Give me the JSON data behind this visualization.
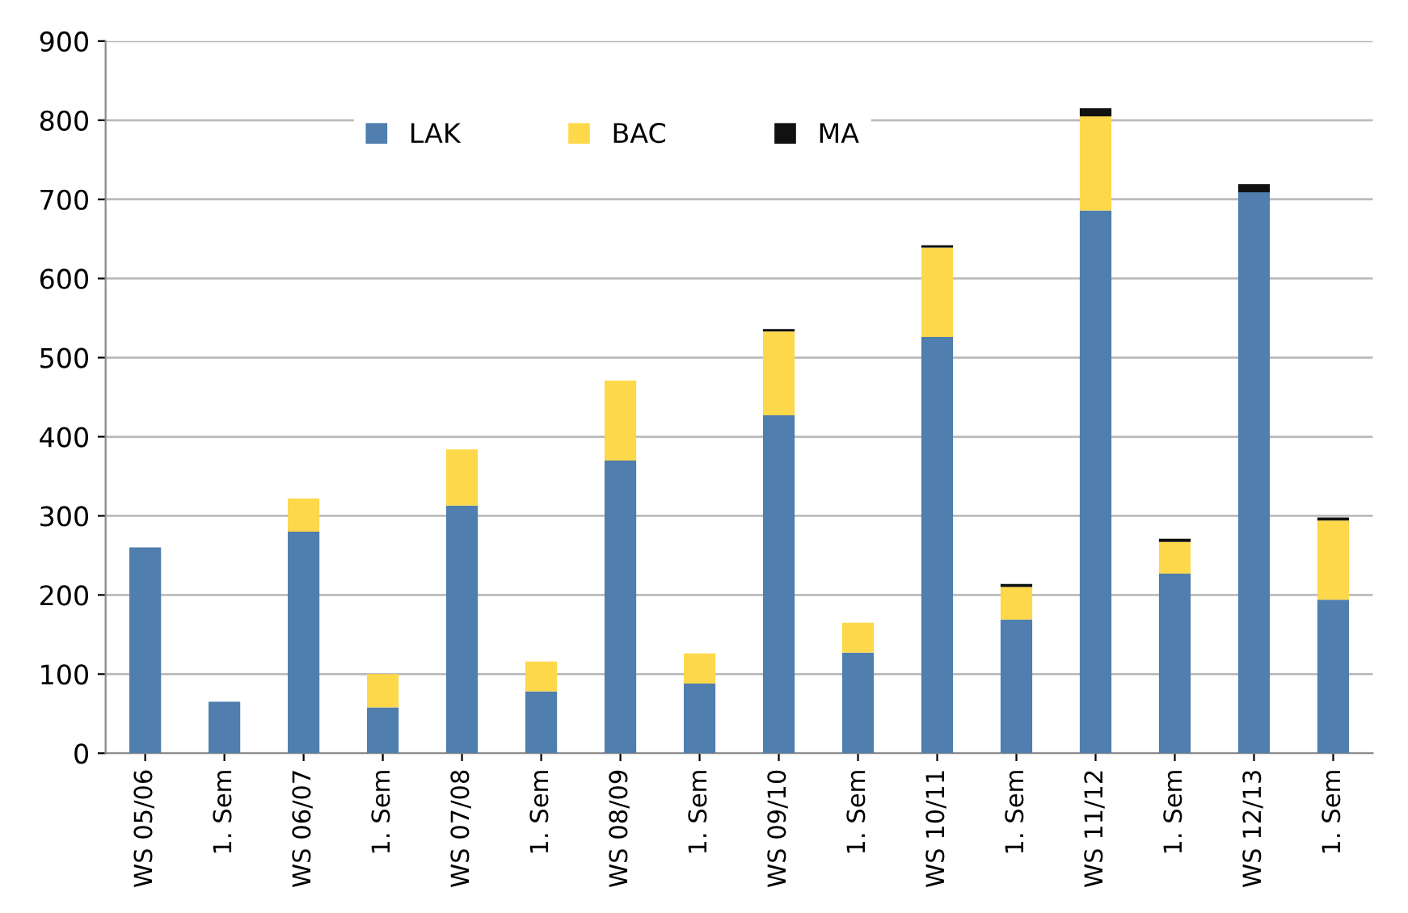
{
  "chart_data": {
    "type": "bar",
    "stacked": true,
    "categories": [
      "WS 05/06",
      "1. Sem",
      "WS 06/07",
      "1. Sem",
      "WS 07/08",
      "1. Sem",
      "WS 08/09",
      "1. Sem",
      "WS 09/10",
      "1. Sem",
      "WS 10/11",
      "1. Sem",
      "WS 11/12",
      "1. Sem",
      "WS 12/13",
      "1. Sem"
    ],
    "series": [
      {
        "name": "LAK",
        "color": "#4f7eaf",
        "values": [
          260,
          65,
          280,
          58,
          313,
          78,
          370,
          88,
          427,
          127,
          526,
          169,
          686,
          227,
          709,
          194
        ]
      },
      {
        "name": "BAC",
        "color": "#fdd84a",
        "values": [
          0,
          0,
          42,
          42,
          71,
          38,
          101,
          38,
          106,
          38,
          113,
          41,
          119,
          40,
          0,
          100
        ]
      },
      {
        "name": "MA",
        "color": "#111111",
        "values": [
          0,
          0,
          0,
          0,
          0,
          0,
          0,
          0,
          3,
          0,
          3,
          4,
          10,
          4,
          10,
          4
        ]
      }
    ],
    "ylim": [
      0,
      900
    ],
    "yticks": [
      0,
      100,
      200,
      300,
      400,
      500,
      600,
      700,
      800,
      900
    ],
    "grid": "y",
    "legend": "top"
  }
}
